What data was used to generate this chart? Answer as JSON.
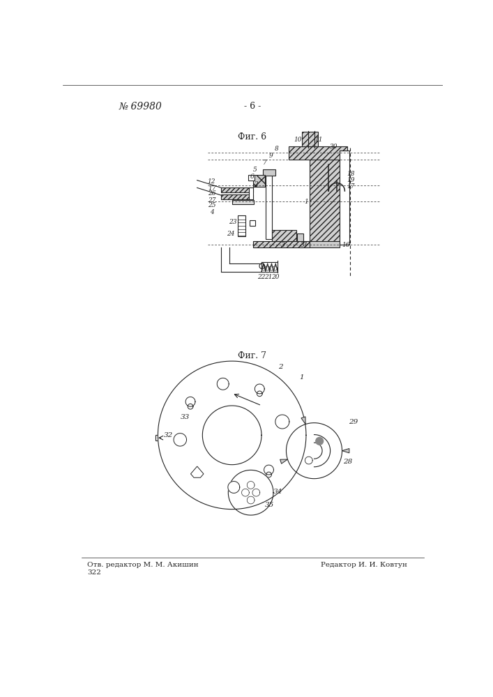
{
  "title_number": "№ 69980",
  "page_number": "- 6 -",
  "fig6_label": "Фиг. 6",
  "fig7_label": "Фиг. 7",
  "footer_left": "Отв. редактор М. М. Акишин",
  "footer_right": "Редактор И. И. Ковтун",
  "footer_number": "322",
  "bg_color": "#ffffff",
  "line_color": "#222222"
}
